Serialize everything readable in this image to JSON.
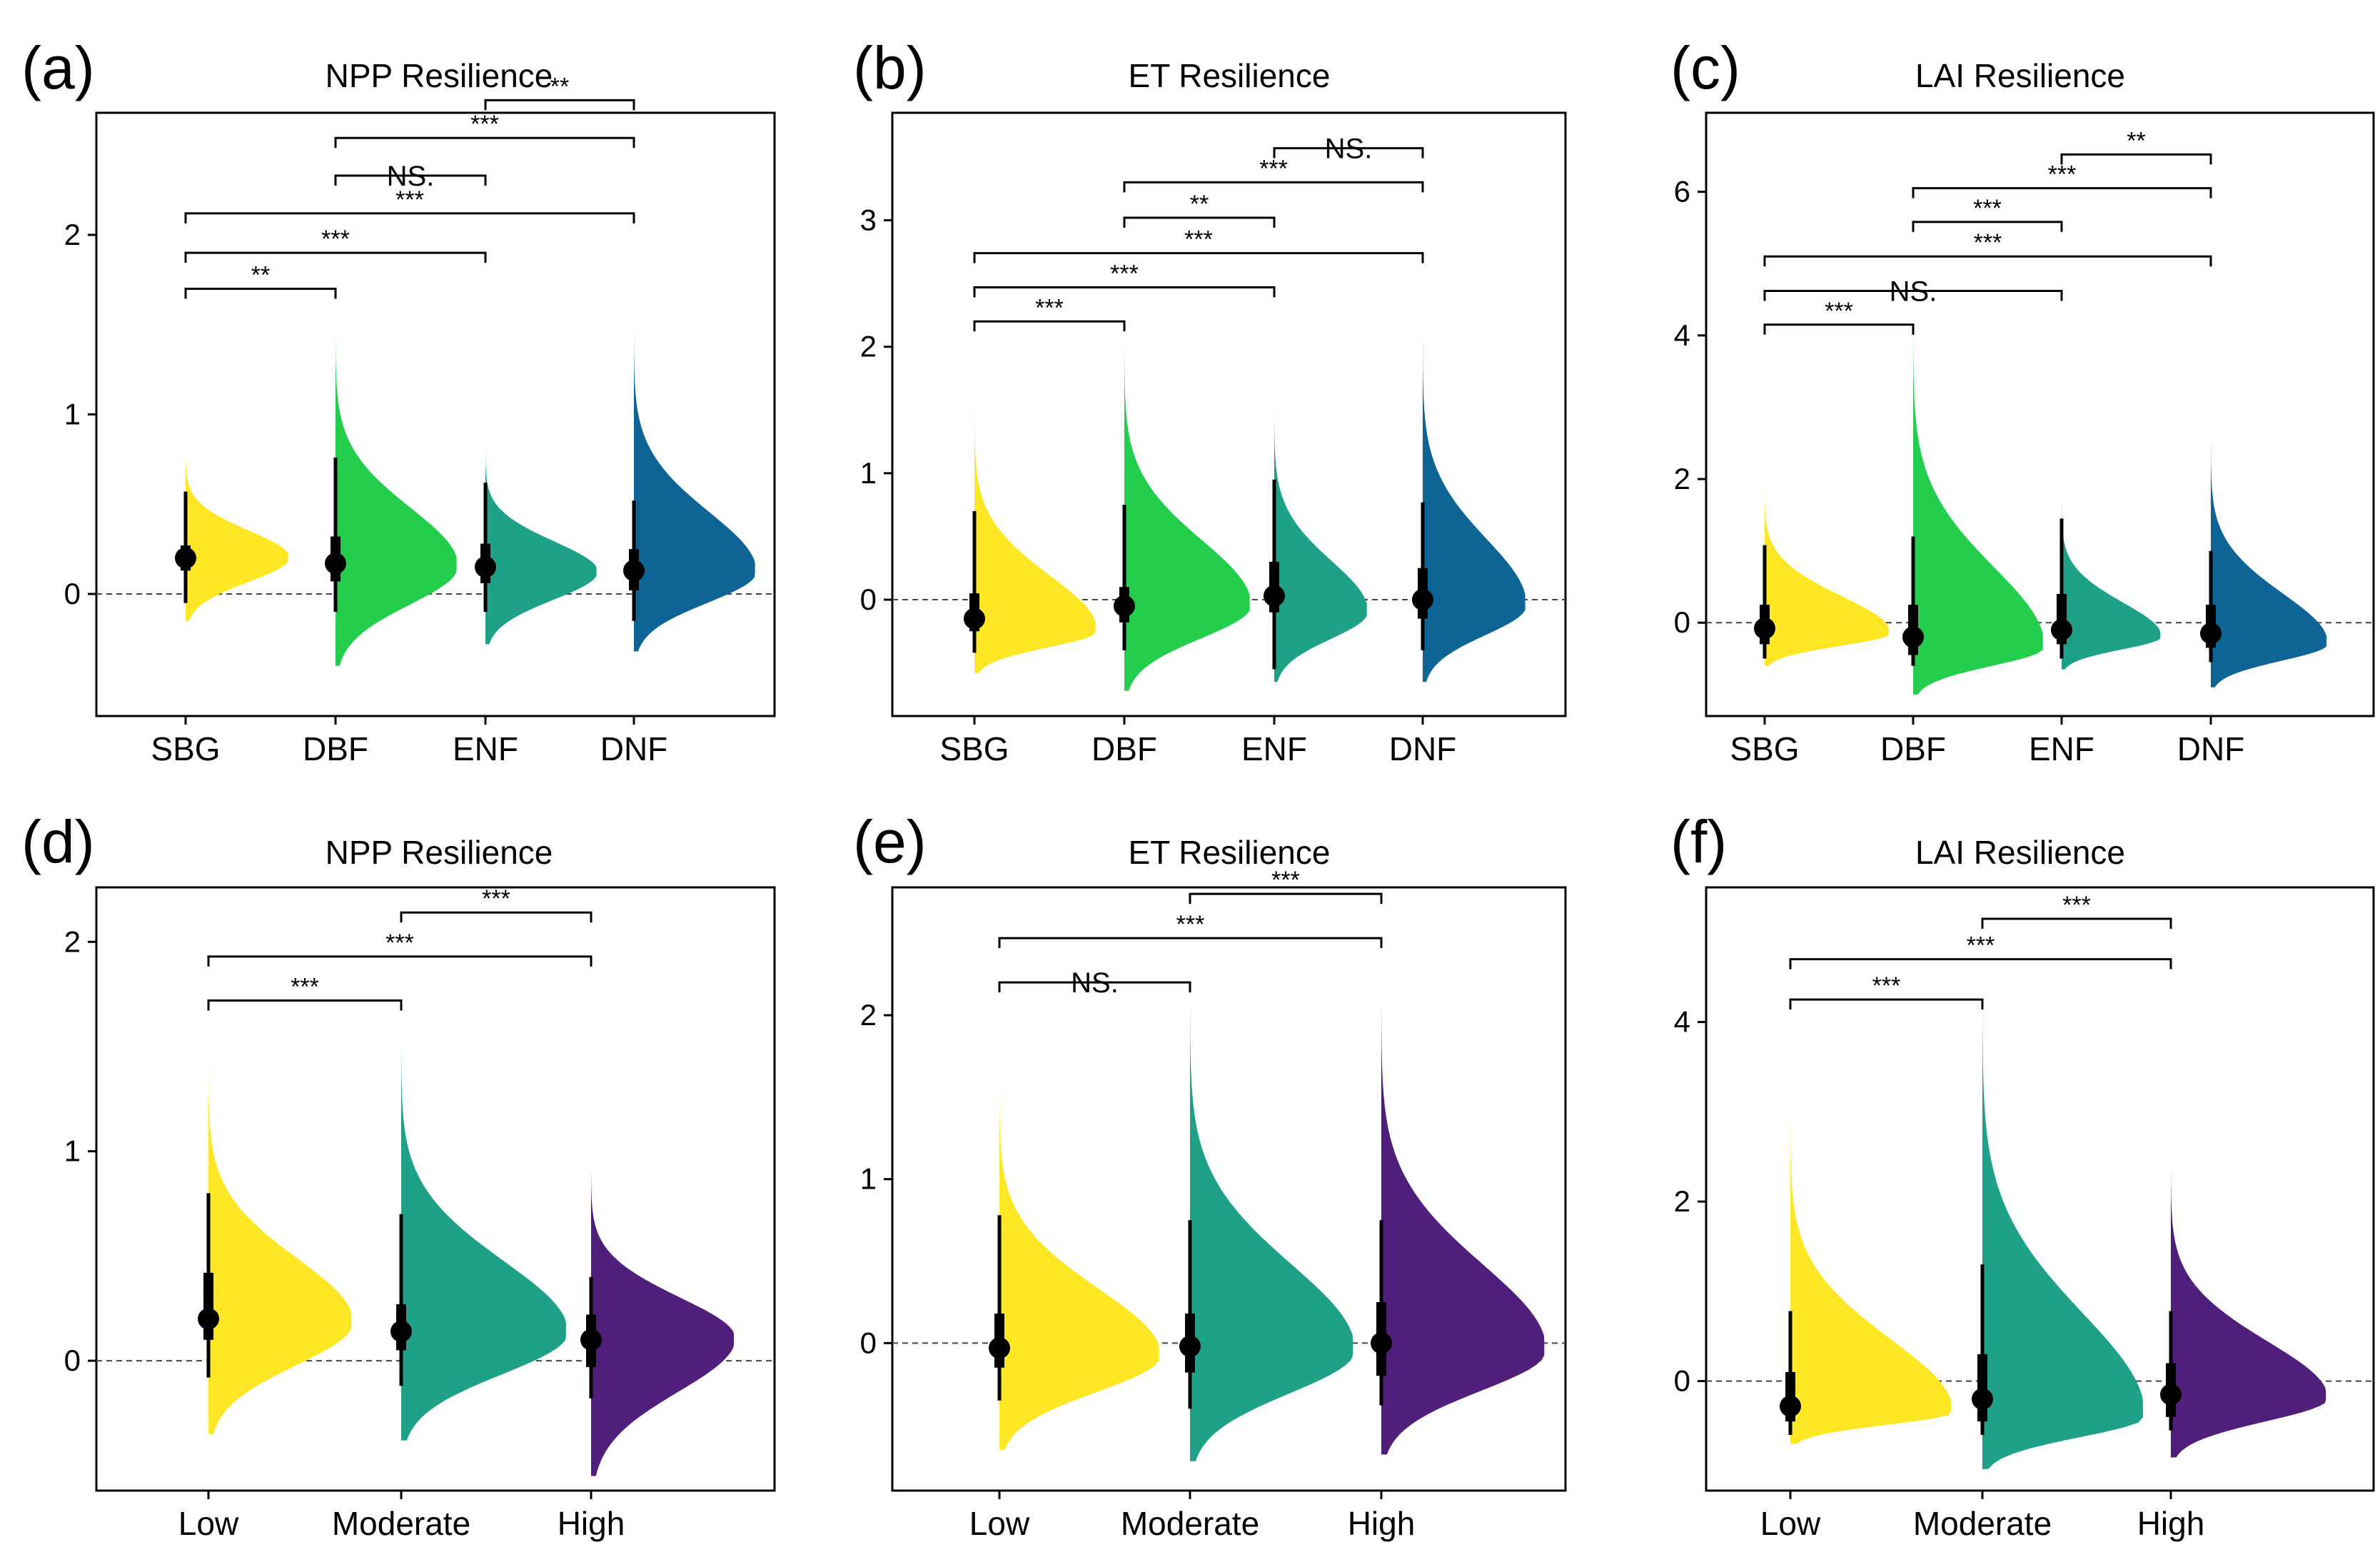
{
  "chart_data": [
    {
      "id": "a",
      "panel_label": "(a)",
      "title": "NPP Resilience",
      "type": "half-violin",
      "categories": [
        "SBG",
        "DBF",
        "ENF",
        "DNF"
      ],
      "colors": [
        "#FDE725",
        "#22CE4B",
        "#1FA187",
        "#0E6494"
      ],
      "ylim": [
        -0.68,
        2.68
      ],
      "yticks": [
        0,
        1,
        2
      ],
      "ytick_labels": [
        "0",
        "1",
        "2"
      ],
      "median": [
        0.2,
        0.17,
        0.15,
        0.13
      ],
      "q1": [
        0.13,
        0.07,
        0.06,
        0.02
      ],
      "q3": [
        0.27,
        0.32,
        0.28,
        0.25
      ],
      "whisker_low": [
        -0.05,
        -0.1,
        -0.1,
        -0.15
      ],
      "whisker_high": [
        0.57,
        0.76,
        0.62,
        0.52
      ],
      "violin_min": [
        -0.15,
        -0.4,
        -0.28,
        -0.32
      ],
      "violin_max": [
        0.8,
        1.45,
        0.8,
        1.45
      ],
      "violin_mode": [
        0.2,
        0.15,
        0.12,
        0.12
      ],
      "violin_width": [
        0.72,
        0.85,
        0.78,
        0.85
      ],
      "comparisons": [
        {
          "groups": [
            "SBG",
            "DBF"
          ],
          "y": 1.7,
          "label": "**"
        },
        {
          "groups": [
            "SBG",
            "ENF"
          ],
          "y": 1.9,
          "label": "***"
        },
        {
          "groups": [
            "SBG",
            "DNF"
          ],
          "y": 2.12,
          "label": "***"
        },
        {
          "groups": [
            "DBF",
            "ENF"
          ],
          "y": 2.33,
          "label": "NS."
        },
        {
          "groups": [
            "DBF",
            "DNF"
          ],
          "y": 2.54,
          "label": "***"
        },
        {
          "groups": [
            "ENF",
            "DNF"
          ],
          "y": 2.75,
          "label": "**"
        }
      ]
    },
    {
      "id": "b",
      "panel_label": "(b)",
      "title": "ET Resilience",
      "type": "half-violin",
      "categories": [
        "SBG",
        "DBF",
        "ENF",
        "DNF"
      ],
      "colors": [
        "#FDE725",
        "#22CE4B",
        "#1FA187",
        "#0E6494"
      ],
      "ylim": [
        -0.92,
        3.85
      ],
      "yticks": [
        0,
        1,
        2,
        3
      ],
      "ytick_labels": [
        "0",
        "1",
        "2",
        "3"
      ],
      "median": [
        -0.15,
        -0.05,
        0.03,
        0.0
      ],
      "q1": [
        -0.25,
        -0.18,
        -0.1,
        -0.15
      ],
      "q3": [
        0.05,
        0.1,
        0.3,
        0.25
      ],
      "whisker_low": [
        -0.42,
        -0.4,
        -0.55,
        -0.4
      ],
      "whisker_high": [
        0.7,
        0.75,
        0.95,
        0.77
      ],
      "violin_min": [
        -0.58,
        -0.72,
        -0.65,
        -0.65
      ],
      "violin_max": [
        1.5,
        2.0,
        1.5,
        2.05
      ],
      "violin_mode": [
        -0.25,
        -0.05,
        -0.1,
        -0.05
      ],
      "violin_width": [
        0.85,
        0.88,
        0.65,
        0.72
      ],
      "comparisons": [
        {
          "groups": [
            "SBG",
            "DBF"
          ],
          "y": 2.2,
          "label": "***"
        },
        {
          "groups": [
            "SBG",
            "ENF"
          ],
          "y": 2.47,
          "label": "***"
        },
        {
          "groups": [
            "SBG",
            "DNF"
          ],
          "y": 2.74,
          "label": "***"
        },
        {
          "groups": [
            "DBF",
            "ENF"
          ],
          "y": 3.02,
          "label": "**"
        },
        {
          "groups": [
            "DBF",
            "DNF"
          ],
          "y": 3.3,
          "label": "***"
        },
        {
          "groups": [
            "ENF",
            "DNF"
          ],
          "y": 3.57,
          "label": "NS."
        }
      ]
    },
    {
      "id": "c",
      "panel_label": "(c)",
      "title": "LAI Resilience",
      "type": "half-violin",
      "categories": [
        "SBG",
        "DBF",
        "ENF",
        "DNF"
      ],
      "colors": [
        "#FDE725",
        "#22CE4B",
        "#1FA187",
        "#0E6494"
      ],
      "ylim": [
        -1.3,
        7.1
      ],
      "yticks": [
        0,
        2,
        4,
        6
      ],
      "ytick_labels": [
        "0",
        "2",
        "4",
        "6"
      ],
      "median": [
        -0.08,
        -0.2,
        -0.1,
        -0.15
      ],
      "q1": [
        -0.3,
        -0.45,
        -0.3,
        -0.35
      ],
      "q3": [
        0.25,
        0.25,
        0.4,
        0.25
      ],
      "whisker_low": [
        -0.5,
        -0.6,
        -0.5,
        -0.55
      ],
      "whisker_high": [
        1.08,
        1.2,
        1.45,
        1.0
      ],
      "violin_min": [
        -0.6,
        -1.0,
        -0.65,
        -0.9
      ],
      "violin_max": [
        1.9,
        4.1,
        1.7,
        2.5
      ],
      "violin_mode": [
        -0.15,
        -0.35,
        -0.2,
        -0.3
      ],
      "violin_width": [
        0.88,
        0.92,
        0.7,
        0.82
      ],
      "comparisons": [
        {
          "groups": [
            "SBG",
            "DBF"
          ],
          "y": 4.15,
          "label": "***"
        },
        {
          "groups": [
            "SBG",
            "ENF"
          ],
          "y": 4.62,
          "label": "NS."
        },
        {
          "groups": [
            "SBG",
            "DNF"
          ],
          "y": 5.1,
          "label": "***"
        },
        {
          "groups": [
            "DBF",
            "ENF"
          ],
          "y": 5.58,
          "label": "***"
        },
        {
          "groups": [
            "DBF",
            "DNF"
          ],
          "y": 6.05,
          "label": "***"
        },
        {
          "groups": [
            "ENF",
            "DNF"
          ],
          "y": 6.52,
          "label": "**"
        }
      ]
    },
    {
      "id": "d",
      "panel_label": "(d)",
      "title": "NPP Resilience",
      "type": "half-violin",
      "categories": [
        "Low",
        "Moderate",
        "High"
      ],
      "colors": [
        "#FDE725",
        "#1FA187",
        "#4F1F7B"
      ],
      "ylim": [
        -0.62,
        2.26
      ],
      "yticks": [
        0,
        1,
        2
      ],
      "ytick_labels": [
        "0",
        "1",
        "2"
      ],
      "median": [
        0.2,
        0.14,
        0.1
      ],
      "q1": [
        0.1,
        0.05,
        -0.03
      ],
      "q3": [
        0.42,
        0.27,
        0.22
      ],
      "whisker_low": [
        -0.08,
        -0.12,
        -0.18
      ],
      "whisker_high": [
        0.8,
        0.7,
        0.4
      ],
      "violin_min": [
        -0.35,
        -0.38,
        -0.55
      ],
      "violin_max": [
        1.4,
        1.5,
        0.9
      ],
      "violin_mode": [
        0.18,
        0.13,
        0.1
      ],
      "violin_width": [
        0.78,
        0.9,
        0.78
      ],
      "comparisons": [
        {
          "groups": [
            "Low",
            "Moderate"
          ],
          "y": 1.72,
          "label": "***"
        },
        {
          "groups": [
            "Low",
            "High"
          ],
          "y": 1.93,
          "label": "***"
        },
        {
          "groups": [
            "Moderate",
            "High"
          ],
          "y": 2.14,
          "label": "***"
        }
      ]
    },
    {
      "id": "e",
      "panel_label": "(e)",
      "title": "ET Resilience",
      "type": "half-violin",
      "categories": [
        "Low",
        "Moderate",
        "High"
      ],
      "colors": [
        "#FDE725",
        "#1FA187",
        "#4F1F7B"
      ],
      "ylim": [
        -0.9,
        2.78
      ],
      "yticks": [
        0,
        1,
        2
      ],
      "ytick_labels": [
        "0",
        "1",
        "2"
      ],
      "median": [
        -0.03,
        -0.02,
        0.0
      ],
      "q1": [
        -0.15,
        -0.18,
        -0.2
      ],
      "q3": [
        0.18,
        0.18,
        0.25
      ],
      "whisker_low": [
        -0.35,
        -0.4,
        -0.38
      ],
      "whisker_high": [
        0.78,
        0.75,
        0.75
      ],
      "violin_min": [
        -0.65,
        -0.72,
        -0.68
      ],
      "violin_max": [
        1.55,
        2.05,
        2.05
      ],
      "violin_mode": [
        -0.08,
        -0.05,
        -0.05
      ],
      "violin_width": [
        0.88,
        0.9,
        0.9
      ],
      "comparisons": [
        {
          "groups": [
            "Low",
            "Moderate"
          ],
          "y": 2.2,
          "label": "NS."
        },
        {
          "groups": [
            "Low",
            "High"
          ],
          "y": 2.47,
          "label": "***"
        },
        {
          "groups": [
            "Moderate",
            "High"
          ],
          "y": 2.74,
          "label": "***"
        }
      ]
    },
    {
      "id": "f",
      "panel_label": "(f)",
      "title": "LAI Resilience",
      "type": "half-violin",
      "categories": [
        "Low",
        "Moderate",
        "High"
      ],
      "colors": [
        "#FDE725",
        "#1FA187",
        "#4F1F7B"
      ],
      "ylim": [
        -1.22,
        5.5
      ],
      "yticks": [
        0,
        2,
        4
      ],
      "ytick_labels": [
        "0",
        "2",
        "4"
      ],
      "median": [
        -0.28,
        -0.2,
        -0.15
      ],
      "q1": [
        -0.45,
        -0.45,
        -0.4
      ],
      "q3": [
        0.1,
        0.3,
        0.2
      ],
      "whisker_low": [
        -0.6,
        -0.6,
        -0.55
      ],
      "whisker_high": [
        0.78,
        1.3,
        0.78
      ],
      "violin_min": [
        -0.7,
        -0.98,
        -0.85
      ],
      "violin_max": [
        2.9,
        4.2,
        2.35
      ],
      "violin_mode": [
        -0.35,
        -0.4,
        -0.2
      ],
      "violin_width": [
        0.88,
        0.88,
        0.85
      ],
      "comparisons": [
        {
          "groups": [
            "Low",
            "Moderate"
          ],
          "y": 4.25,
          "label": "***"
        },
        {
          "groups": [
            "Low",
            "High"
          ],
          "y": 4.7,
          "label": "***"
        },
        {
          "groups": [
            "Moderate",
            "High"
          ],
          "y": 5.15,
          "label": "***"
        }
      ]
    }
  ]
}
